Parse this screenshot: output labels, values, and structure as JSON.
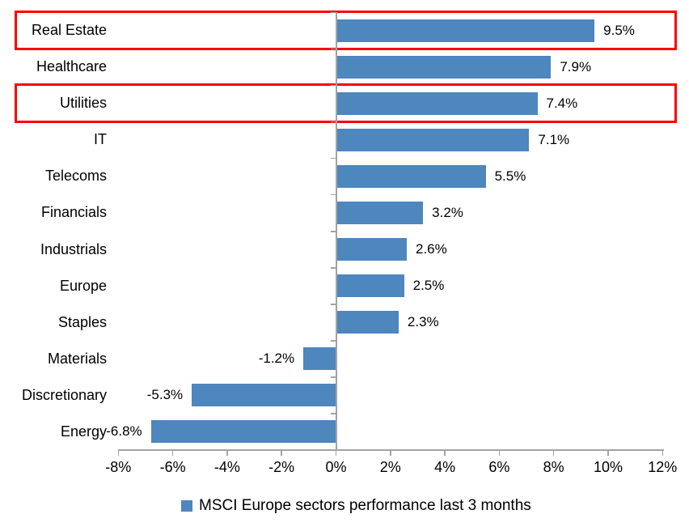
{
  "chart_data": {
    "type": "bar",
    "orientation": "horizontal",
    "title": "",
    "xlabel": "",
    "ylabel": "",
    "categories": [
      "Real Estate",
      "Healthcare",
      "Utilities",
      "IT",
      "Telecoms",
      "Financials",
      "Industrials",
      "Europe",
      "Staples",
      "Materials",
      "Discretionary",
      "Energy"
    ],
    "values": [
      9.5,
      7.9,
      7.4,
      7.1,
      5.5,
      3.2,
      2.6,
      2.5,
      2.3,
      -1.2,
      -5.3,
      -6.8
    ],
    "value_labels": [
      "9.5%",
      "7.9%",
      "7.4%",
      "7.1%",
      "5.5%",
      "3.2%",
      "2.6%",
      "2.5%",
      "2.3%",
      "-1.2%",
      "-5.3%",
      "-6.8%"
    ],
    "series": [
      {
        "name": "MSCI Europe sectors performance last 3 months",
        "values": [
          9.5,
          7.9,
          7.4,
          7.1,
          5.5,
          3.2,
          2.6,
          2.5,
          2.3,
          -1.2,
          -5.3,
          -6.8
        ]
      }
    ],
    "xlim": [
      -8,
      12
    ],
    "x_ticks": [
      {
        "value": -8,
        "label": "-8%"
      },
      {
        "value": -6,
        "label": "-6%"
      },
      {
        "value": -4,
        "label": "-4%"
      },
      {
        "value": -2,
        "label": "-2%"
      },
      {
        "value": 0,
        "label": "0%"
      },
      {
        "value": 2,
        "label": "2%"
      },
      {
        "value": 4,
        "label": "4%"
      },
      {
        "value": 6,
        "label": "6%"
      },
      {
        "value": 8,
        "label": "8%"
      },
      {
        "value": 10,
        "label": "10%"
      },
      {
        "value": 12,
        "label": "12%"
      }
    ],
    "grid": false,
    "legend_position": "bottom",
    "highlighted_categories": [
      "Real Estate",
      "Utilities"
    ],
    "colors": {
      "bar": "#4e86be",
      "highlight_box": "#ff0000",
      "axis": "#a3a3a3",
      "text": "#000000"
    }
  },
  "legend": {
    "label": "MSCI Europe sectors performance last 3 months",
    "marker_color": "#4e86be"
  }
}
